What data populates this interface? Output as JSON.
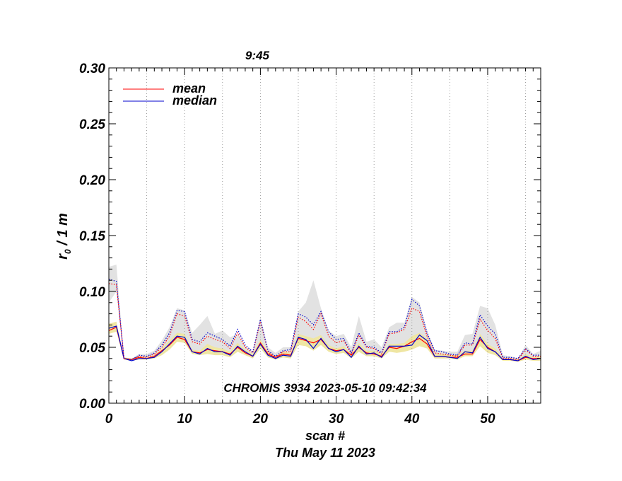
{
  "chart_data": {
    "type": "line",
    "title": "9:45",
    "xlabel": "scan #",
    "date_label": "Thu May 11 2023",
    "ylabel_main": "r",
    "ylabel_sub": "0",
    "ylabel_rest": " / 1 m",
    "annotation": "CHROMIS 3934 2023-05-10 09:42:34",
    "xlim": [
      0,
      57
    ],
    "ylim": [
      0,
      0.3
    ],
    "x_ticks": [
      0,
      10,
      20,
      30,
      40,
      50
    ],
    "y_ticks": [
      0.0,
      0.05,
      0.1,
      0.15,
      0.2,
      0.25,
      0.3
    ],
    "x_tick_labels": [
      "0",
      "10",
      "20",
      "30",
      "40",
      "50"
    ],
    "y_tick_labels": [
      "0.00",
      "0.05",
      "0.10",
      "0.15",
      "0.20",
      "0.25",
      "0.30"
    ],
    "grid": "vertical dotted",
    "legend_position": "top-left",
    "legend": [
      {
        "label": "mean",
        "color": "#ff0000"
      },
      {
        "label": "median",
        "color": "#0000cc"
      }
    ],
    "x": [
      0,
      1,
      2,
      3,
      4,
      5,
      6,
      7,
      8,
      9,
      10,
      11,
      12,
      13,
      14,
      15,
      16,
      17,
      18,
      19,
      20,
      21,
      22,
      23,
      24,
      25,
      26,
      27,
      28,
      29,
      30,
      31,
      32,
      33,
      34,
      35,
      36,
      37,
      38,
      39,
      40,
      41,
      42,
      43,
      44,
      45,
      46,
      47,
      48,
      49,
      50,
      51,
      52,
      53,
      54,
      55,
      56,
      57
    ],
    "series": [
      {
        "name": "mean",
        "color": "#ff0000",
        "style": "solid",
        "values": [
          0.065,
          0.068,
          0.04,
          0.039,
          0.041,
          0.04,
          0.042,
          0.047,
          0.052,
          0.059,
          0.057,
          0.046,
          0.045,
          0.048,
          0.047,
          0.046,
          0.044,
          0.05,
          0.045,
          0.042,
          0.054,
          0.044,
          0.041,
          0.044,
          0.043,
          0.058,
          0.056,
          0.054,
          0.057,
          0.049,
          0.047,
          0.048,
          0.043,
          0.05,
          0.045,
          0.044,
          0.042,
          0.05,
          0.049,
          0.051,
          0.055,
          0.058,
          0.053,
          0.042,
          0.042,
          0.041,
          0.041,
          0.044,
          0.044,
          0.057,
          0.05,
          0.046,
          0.039,
          0.039,
          0.038,
          0.041,
          0.04,
          0.04
        ]
      },
      {
        "name": "median",
        "color": "#0000cc",
        "style": "solid",
        "values": [
          0.067,
          0.069,
          0.04,
          0.038,
          0.04,
          0.04,
          0.041,
          0.046,
          0.053,
          0.06,
          0.059,
          0.046,
          0.044,
          0.049,
          0.046,
          0.046,
          0.043,
          0.051,
          0.046,
          0.042,
          0.053,
          0.043,
          0.04,
          0.043,
          0.042,
          0.059,
          0.057,
          0.049,
          0.058,
          0.049,
          0.046,
          0.048,
          0.041,
          0.051,
          0.044,
          0.045,
          0.041,
          0.051,
          0.051,
          0.051,
          0.052,
          0.061,
          0.056,
          0.042,
          0.042,
          0.041,
          0.04,
          0.046,
          0.045,
          0.059,
          0.049,
          0.046,
          0.039,
          0.039,
          0.038,
          0.042,
          0.039,
          0.04
        ]
      },
      {
        "name": "mean-dotted",
        "color": "#ff0000",
        "style": "dotted",
        "values": [
          0.107,
          0.106,
          0.04,
          0.039,
          0.042,
          0.041,
          0.044,
          0.05,
          0.06,
          0.08,
          0.078,
          0.055,
          0.053,
          0.06,
          0.057,
          0.055,
          0.049,
          0.063,
          0.05,
          0.045,
          0.073,
          0.046,
          0.041,
          0.046,
          0.046,
          0.077,
          0.073,
          0.066,
          0.08,
          0.06,
          0.054,
          0.056,
          0.044,
          0.061,
          0.05,
          0.049,
          0.044,
          0.062,
          0.063,
          0.066,
          0.085,
          0.082,
          0.06,
          0.045,
          0.044,
          0.043,
          0.042,
          0.052,
          0.052,
          0.075,
          0.065,
          0.058,
          0.04,
          0.04,
          0.039,
          0.048,
          0.042,
          0.042
        ]
      },
      {
        "name": "median-dotted",
        "color": "#0000cc",
        "style": "dotted",
        "values": [
          0.111,
          0.109,
          0.04,
          0.039,
          0.043,
          0.042,
          0.045,
          0.052,
          0.063,
          0.083,
          0.082,
          0.057,
          0.055,
          0.063,
          0.06,
          0.057,
          0.051,
          0.066,
          0.052,
          0.046,
          0.075,
          0.047,
          0.042,
          0.047,
          0.048,
          0.08,
          0.077,
          0.07,
          0.082,
          0.064,
          0.057,
          0.058,
          0.045,
          0.063,
          0.051,
          0.05,
          0.045,
          0.064,
          0.064,
          0.068,
          0.093,
          0.087,
          0.063,
          0.047,
          0.046,
          0.044,
          0.043,
          0.054,
          0.053,
          0.079,
          0.069,
          0.062,
          0.041,
          0.041,
          0.04,
          0.049,
          0.043,
          0.043
        ]
      }
    ],
    "bands": [
      {
        "name": "gray-band",
        "color": "#e2e2e2",
        "lower": [
          0.09,
          0.1,
          0.04,
          0.039,
          0.04,
          0.04,
          0.041,
          0.046,
          0.052,
          0.062,
          0.06,
          0.046,
          0.045,
          0.049,
          0.047,
          0.046,
          0.044,
          0.051,
          0.046,
          0.042,
          0.054,
          0.044,
          0.04,
          0.044,
          0.043,
          0.058,
          0.056,
          0.052,
          0.057,
          0.049,
          0.047,
          0.048,
          0.042,
          0.05,
          0.045,
          0.044,
          0.042,
          0.05,
          0.05,
          0.051,
          0.056,
          0.059,
          0.054,
          0.042,
          0.042,
          0.041,
          0.041,
          0.045,
          0.045,
          0.058,
          0.05,
          0.047,
          0.039,
          0.039,
          0.038,
          0.042,
          0.04,
          0.041
        ],
        "upper": [
          0.122,
          0.124,
          0.04,
          0.04,
          0.044,
          0.044,
          0.047,
          0.056,
          0.068,
          0.085,
          0.083,
          0.063,
          0.07,
          0.078,
          0.062,
          0.065,
          0.059,
          0.062,
          0.051,
          0.046,
          0.077,
          0.05,
          0.045,
          0.05,
          0.05,
          0.082,
          0.09,
          0.11,
          0.085,
          0.065,
          0.06,
          0.062,
          0.05,
          0.078,
          0.055,
          0.057,
          0.05,
          0.068,
          0.072,
          0.072,
          0.095,
          0.09,
          0.065,
          0.048,
          0.047,
          0.046,
          0.046,
          0.061,
          0.062,
          0.087,
          0.085,
          0.07,
          0.043,
          0.042,
          0.04,
          0.052,
          0.044,
          0.047
        ]
      },
      {
        "name": "yellow-band",
        "color": "#efe6a3",
        "lower": [
          0.062,
          0.064,
          0.039,
          0.038,
          0.039,
          0.039,
          0.04,
          0.043,
          0.048,
          0.055,
          0.054,
          0.044,
          0.043,
          0.044,
          0.043,
          0.043,
          0.041,
          0.046,
          0.043,
          0.04,
          0.049,
          0.041,
          0.039,
          0.041,
          0.04,
          0.052,
          0.051,
          0.047,
          0.052,
          0.046,
          0.044,
          0.045,
          0.04,
          0.046,
          0.042,
          0.042,
          0.04,
          0.046,
          0.045,
          0.046,
          0.048,
          0.051,
          0.049,
          0.04,
          0.04,
          0.04,
          0.039,
          0.042,
          0.042,
          0.051,
          0.045,
          0.043,
          0.038,
          0.038,
          0.037,
          0.039,
          0.038,
          0.038
        ],
        "upper": [
          0.071,
          0.073,
          0.041,
          0.04,
          0.042,
          0.041,
          0.043,
          0.049,
          0.056,
          0.063,
          0.062,
          0.048,
          0.047,
          0.053,
          0.05,
          0.049,
          0.046,
          0.054,
          0.048,
          0.044,
          0.057,
          0.046,
          0.042,
          0.046,
          0.045,
          0.062,
          0.06,
          0.058,
          0.061,
          0.052,
          0.049,
          0.051,
          0.044,
          0.054,
          0.047,
          0.047,
          0.044,
          0.053,
          0.053,
          0.054,
          0.06,
          0.063,
          0.058,
          0.044,
          0.044,
          0.043,
          0.043,
          0.047,
          0.047,
          0.062,
          0.053,
          0.049,
          0.04,
          0.04,
          0.039,
          0.044,
          0.041,
          0.042
        ]
      }
    ]
  }
}
